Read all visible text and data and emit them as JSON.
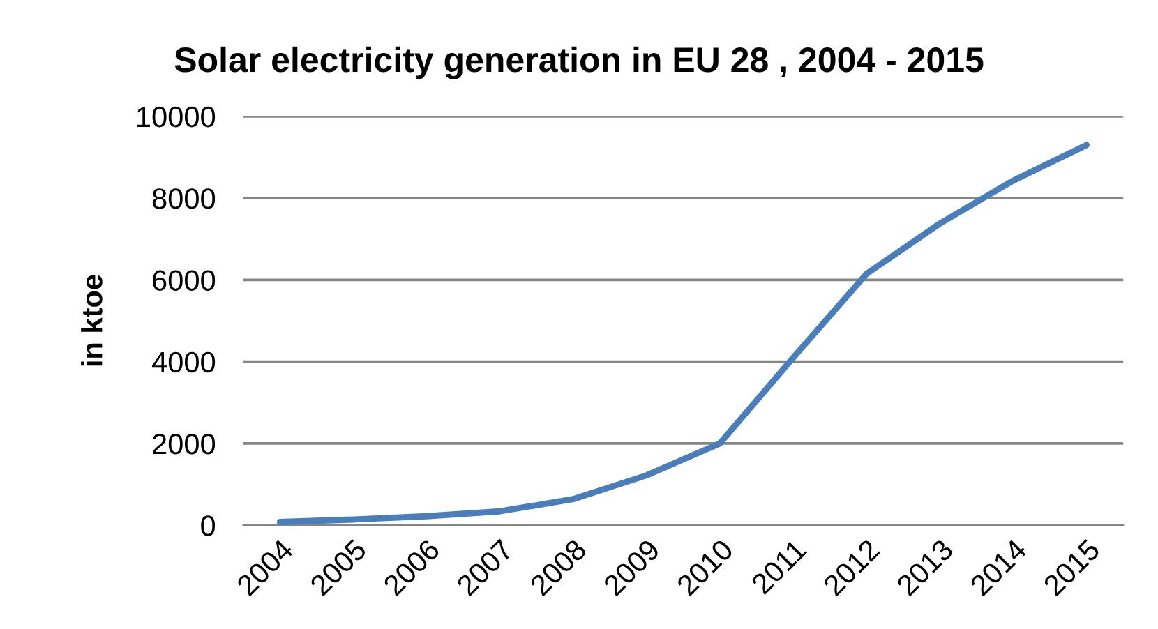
{
  "chart_data": {
    "type": "line",
    "title": "Solar electricity generation in EU 28 , 2004 - 2015",
    "ylabel": "in ktoe",
    "categories": [
      "2004",
      "2005",
      "2006",
      "2007",
      "2008",
      "2009",
      "2010",
      "2011",
      "2012",
      "2013",
      "2014",
      "2015"
    ],
    "series": [
      {
        "color": "#4a7ebb",
        "values": [
          80,
          140,
          220,
          340,
          640,
          1220,
          2000,
          4100,
          6150,
          7380,
          8430,
          9300
        ]
      }
    ],
    "ylim": [
      0,
      10000
    ],
    "yticks": [
      0,
      2000,
      4000,
      6000,
      8000,
      10000
    ],
    "grid": "y",
    "marker": "none",
    "line_style": "solid"
  }
}
